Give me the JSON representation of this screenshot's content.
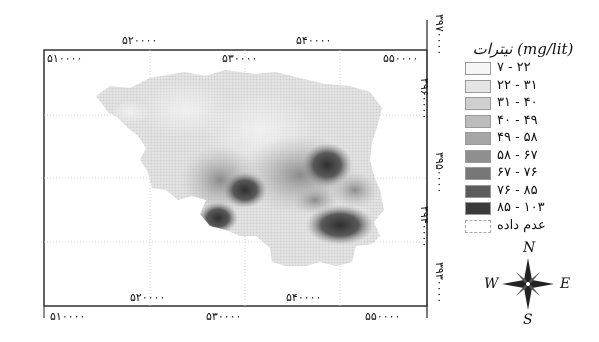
{
  "legend": {
    "title": "نیترات (mg/lit)",
    "classes": [
      {
        "label": "۷ - ۲۲",
        "color": "#f6f6f6"
      },
      {
        "label": "۲۲ - ۳۱",
        "color": "#e4e4e4"
      },
      {
        "label": "۳۱ - ۴۰",
        "color": "#d0d0d0"
      },
      {
        "label": "۴۰ - ۴۹",
        "color": "#bcbcbc"
      },
      {
        "label": "۴۹ - ۵۸",
        "color": "#a6a6a6"
      },
      {
        "label": "۵۸ - ۶۷",
        "color": "#8f8f8f"
      },
      {
        "label": "۶۷ - ۷۶",
        "color": "#777777"
      },
      {
        "label": "۷۶ - ۸۵",
        "color": "#5c5c5c"
      },
      {
        "label": "۸۵ - ۱۰۳",
        "color": "#3a3a3a"
      }
    ],
    "nodata_label": "عدم داده"
  },
  "axes": {
    "x_ticks_top": [
      "۵۲۰۰۰۰",
      "۵۴۰۰۰۰"
    ],
    "x_ticks_top_corner": [
      "۵۱۰۰۰۰",
      "۵۵۰۰۰۰"
    ],
    "x_ticks_inner_bottom": [
      "۵۲۰۰۰۰",
      "۵۴۰۰۰۰"
    ],
    "x_ticks_bottom": [
      "۵۱۰۰۰۰",
      "۵۳۰۰۰۰",
      "۵۵۰۰۰۰"
    ],
    "x_ticks_top_mid": "۵۳۰۰۰۰",
    "y_ticks": [
      "۳۹۷۰۰۰۰",
      "۳۹۶۰۰۰۰",
      "۳۹۵۰۰۰۰",
      "۳۹۴۰۰۰۰",
      "۳۹۳۰۰۰۰"
    ]
  },
  "compass": {
    "n": "N",
    "s": "S",
    "e": "E",
    "w": "W"
  }
}
